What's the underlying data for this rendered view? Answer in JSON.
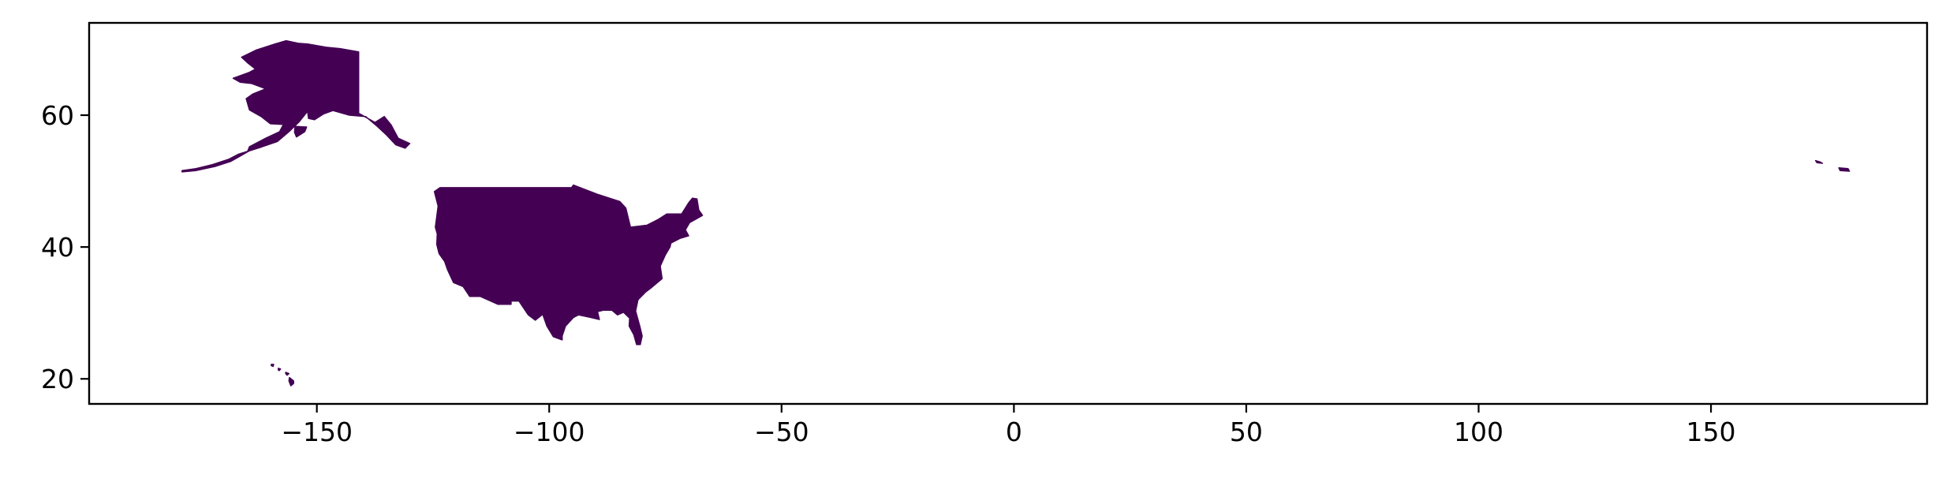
{
  "colors": {
    "land_fill": "#440154",
    "axes_frame": "#000000",
    "background": "#ffffff"
  },
  "map": {
    "projection": "plate-carree longitude/latitude",
    "xlim": [
      -199.0,
      196.5
    ],
    "ylim": [
      16.2,
      74.0
    ],
    "x_ticks": [
      {
        "value": -150,
        "label": "−150"
      },
      {
        "value": -100,
        "label": "−100"
      },
      {
        "value": -50,
        "label": "−50"
      },
      {
        "value": 0,
        "label": "0"
      },
      {
        "value": 50,
        "label": "50"
      },
      {
        "value": 100,
        "label": "100"
      },
      {
        "value": 150,
        "label": "150"
      }
    ],
    "y_ticks": [
      {
        "value": 20,
        "label": "20"
      },
      {
        "value": 40,
        "label": "40"
      },
      {
        "value": 60,
        "label": "60"
      }
    ],
    "regions": [
      {
        "name": "contiguous-us",
        "outline": [
          [
            -124.7,
            48.4
          ],
          [
            -123.5,
            49.0
          ],
          [
            -95.2,
            49.0
          ],
          [
            -94.8,
            49.4
          ],
          [
            -89.6,
            48.0
          ],
          [
            -84.8,
            46.9
          ],
          [
            -83.5,
            45.9
          ],
          [
            -82.5,
            43.0
          ],
          [
            -79.0,
            43.3
          ],
          [
            -76.5,
            44.2
          ],
          [
            -74.7,
            45.0
          ],
          [
            -71.5,
            45.0
          ],
          [
            -70.0,
            46.7
          ],
          [
            -69.2,
            47.4
          ],
          [
            -68.2,
            47.3
          ],
          [
            -67.8,
            45.6
          ],
          [
            -67.0,
            44.8
          ],
          [
            -69.8,
            43.7
          ],
          [
            -70.7,
            42.6
          ],
          [
            -70.0,
            41.7
          ],
          [
            -71.9,
            41.3
          ],
          [
            -73.8,
            40.6
          ],
          [
            -74.0,
            40.0
          ],
          [
            -75.0,
            38.8
          ],
          [
            -76.1,
            37.1
          ],
          [
            -75.7,
            35.2
          ],
          [
            -77.9,
            33.9
          ],
          [
            -79.2,
            33.2
          ],
          [
            -80.9,
            32.0
          ],
          [
            -81.4,
            30.3
          ],
          [
            -80.5,
            28.0
          ],
          [
            -80.0,
            26.5
          ],
          [
            -80.4,
            25.2
          ],
          [
            -81.2,
            25.2
          ],
          [
            -81.8,
            26.7
          ],
          [
            -82.8,
            28.0
          ],
          [
            -82.7,
            29.2
          ],
          [
            -84.0,
            30.1
          ],
          [
            -85.3,
            29.7
          ],
          [
            -86.5,
            30.4
          ],
          [
            -88.4,
            30.4
          ],
          [
            -89.6,
            30.2
          ],
          [
            -89.2,
            29.0
          ],
          [
            -91.0,
            29.3
          ],
          [
            -93.7,
            29.7
          ],
          [
            -94.8,
            29.3
          ],
          [
            -96.5,
            28.0
          ],
          [
            -97.2,
            26.5
          ],
          [
            -97.2,
            25.9
          ],
          [
            -99.1,
            26.4
          ],
          [
            -100.5,
            28.0
          ],
          [
            -101.4,
            29.8
          ],
          [
            -103.0,
            28.9
          ],
          [
            -104.5,
            29.7
          ],
          [
            -106.5,
            31.8
          ],
          [
            -108.2,
            31.8
          ],
          [
            -108.2,
            31.3
          ],
          [
            -111.0,
            31.3
          ],
          [
            -114.8,
            32.5
          ],
          [
            -117.1,
            32.5
          ],
          [
            -118.5,
            34.0
          ],
          [
            -120.6,
            34.6
          ],
          [
            -121.9,
            36.6
          ],
          [
            -122.5,
            37.8
          ],
          [
            -123.7,
            39.0
          ],
          [
            -124.2,
            40.4
          ],
          [
            -124.1,
            42.0
          ],
          [
            -124.5,
            43.0
          ],
          [
            -123.9,
            46.2
          ],
          [
            -124.7,
            48.4
          ]
        ]
      },
      {
        "name": "alaska",
        "outline": [
          [
            -141.0,
            69.6
          ],
          [
            -141.0,
            60.3
          ],
          [
            -137.5,
            58.9
          ],
          [
            -135.5,
            59.8
          ],
          [
            -134.0,
            58.5
          ],
          [
            -132.5,
            56.5
          ],
          [
            -130.0,
            55.7
          ],
          [
            -131.0,
            55.0
          ],
          [
            -133.0,
            55.5
          ],
          [
            -135.0,
            57.0
          ],
          [
            -137.0,
            58.3
          ],
          [
            -139.5,
            59.8
          ],
          [
            -143.0,
            60.0
          ],
          [
            -146.5,
            60.7
          ],
          [
            -148.5,
            60.2
          ],
          [
            -150.5,
            59.3
          ],
          [
            -151.8,
            59.5
          ],
          [
            -152.0,
            60.6
          ],
          [
            -153.8,
            59.0
          ],
          [
            -156.0,
            57.5
          ],
          [
            -158.5,
            56.0
          ],
          [
            -161.8,
            55.2
          ],
          [
            -164.9,
            54.5
          ],
          [
            -164.5,
            55.2
          ],
          [
            -161.0,
            56.5
          ],
          [
            -158.0,
            57.5
          ],
          [
            -157.2,
            58.6
          ],
          [
            -160.0,
            58.7
          ],
          [
            -162.0,
            59.8
          ],
          [
            -164.5,
            60.8
          ],
          [
            -165.2,
            62.5
          ],
          [
            -163.8,
            63.2
          ],
          [
            -161.0,
            64.0
          ],
          [
            -164.0,
            64.8
          ],
          [
            -166.5,
            65.0
          ],
          [
            -168.0,
            65.6
          ],
          [
            -164.5,
            66.5
          ],
          [
            -163.2,
            67.0
          ],
          [
            -165.0,
            68.0
          ],
          [
            -166.2,
            68.8
          ],
          [
            -163.0,
            69.9
          ],
          [
            -159.0,
            70.8
          ],
          [
            -156.6,
            71.3
          ],
          [
            -154.0,
            70.9
          ],
          [
            -152.0,
            70.8
          ],
          [
            -148.0,
            70.3
          ],
          [
            -145.0,
            70.1
          ],
          [
            -141.0,
            69.6
          ]
        ]
      },
      {
        "name": "aleutian-islands",
        "outline": [
          [
            -179.0,
            51.4
          ],
          [
            -176.0,
            51.6
          ],
          [
            -172.0,
            52.2
          ],
          [
            -168.5,
            53.0
          ],
          [
            -166.5,
            53.8
          ],
          [
            -164.5,
            54.6
          ],
          [
            -166.8,
            54.1
          ],
          [
            -169.0,
            53.3
          ],
          [
            -172.5,
            52.5
          ],
          [
            -176.0,
            51.9
          ],
          [
            -179.0,
            51.6
          ]
        ]
      },
      {
        "name": "kodiak-island",
        "outline": [
          [
            -154.7,
            58.3
          ],
          [
            -152.2,
            58.2
          ],
          [
            -152.6,
            57.5
          ],
          [
            -154.4,
            56.7
          ],
          [
            -154.8,
            57.4
          ]
        ]
      },
      {
        "name": "hawaii",
        "outline": [
          [
            -155.9,
            20.2
          ],
          [
            -155.0,
            19.7
          ],
          [
            -155.0,
            19.3
          ],
          [
            -155.6,
            18.95
          ],
          [
            -156.0,
            19.7
          ]
        ]
      },
      {
        "name": "hawaii-maui",
        "outline": [
          [
            -156.7,
            21.0
          ],
          [
            -156.0,
            20.8
          ],
          [
            -156.4,
            20.55
          ],
          [
            -156.7,
            20.8
          ]
        ]
      },
      {
        "name": "hawaii-oahu",
        "outline": [
          [
            -158.3,
            21.6
          ],
          [
            -157.8,
            21.5
          ],
          [
            -158.1,
            21.25
          ],
          [
            -158.3,
            21.35
          ]
        ]
      },
      {
        "name": "hawaii-kauai",
        "outline": [
          [
            -159.8,
            22.2
          ],
          [
            -159.3,
            22.2
          ],
          [
            -159.4,
            21.9
          ],
          [
            -159.8,
            22.0
          ]
        ]
      },
      {
        "name": "western-aleutians",
        "outline": [
          [
            172.5,
            53.1
          ],
          [
            173.5,
            52.9
          ],
          [
            174.0,
            52.7
          ],
          [
            172.8,
            52.8
          ]
        ]
      },
      {
        "name": "rat-islands",
        "outline": [
          [
            177.5,
            52.0
          ],
          [
            179.5,
            51.9
          ],
          [
            179.8,
            51.5
          ],
          [
            177.8,
            51.6
          ]
        ]
      }
    ]
  }
}
